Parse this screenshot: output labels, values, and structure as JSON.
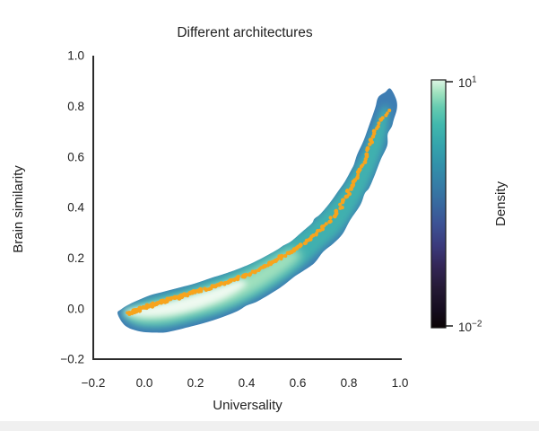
{
  "figure": {
    "title": "Different architectures"
  },
  "axes": {
    "x_label": "Universality",
    "y_label": "Brain similarity",
    "x_tick_labels": [
      "−0.2",
      "0.0",
      "0.2",
      "0.4",
      "0.6",
      "0.8",
      "1.0"
    ],
    "y_tick_labels": [
      "1.0",
      "0.8",
      "0.6",
      "0.4",
      "0.2",
      "0.0",
      "−0.2"
    ]
  },
  "colorbar": {
    "label": "Density",
    "scale": "log10",
    "top_tick": {
      "base": "10",
      "exp": "1"
    },
    "bottom_tick": {
      "base": "10",
      "exp": "−2"
    },
    "gradient": [
      [
        0.0,
        "#0b0405"
      ],
      [
        0.07,
        "#150c1e"
      ],
      [
        0.16,
        "#251a35"
      ],
      [
        0.25,
        "#332657"
      ],
      [
        0.33,
        "#3b3a7c"
      ],
      [
        0.42,
        "#3c5295"
      ],
      [
        0.5,
        "#38699f"
      ],
      [
        0.58,
        "#357ea6"
      ],
      [
        0.66,
        "#3292aa"
      ],
      [
        0.74,
        "#35a5ac"
      ],
      [
        0.82,
        "#41b8ad"
      ],
      [
        0.89,
        "#66cbb0"
      ],
      [
        0.95,
        "#a2e3c0"
      ],
      [
        1.0,
        "#def5e5"
      ]
    ]
  },
  "colors": {
    "blob_outer": "#3e7db3",
    "blob_teal": "#3fb0af",
    "blob_green": "#9fe0bd",
    "blob_core": "#eef9f0",
    "trend_orange": "#f7a41d",
    "spine": "#2b2b2b",
    "text": "#222222",
    "footer_strip": "#f0f0f0"
  },
  "chart_data": {
    "type": "density-kde-with-trend-scatter",
    "title": "Different architectures",
    "xlabel": "Universality",
    "ylabel": "Brain similarity",
    "xlim": [
      -0.2,
      1.0
    ],
    "ylim": [
      -0.2,
      1.0
    ],
    "x_ticks": [
      -0.2,
      0.0,
      0.2,
      0.4,
      0.6,
      0.8,
      1.0
    ],
    "y_ticks": [
      -0.2,
      0.0,
      0.2,
      0.4,
      0.6,
      0.8,
      1.0
    ],
    "grid": false,
    "colorbar": {
      "label": "Density",
      "scale": "log10",
      "min": 0.01,
      "max": 10,
      "position": "right"
    },
    "kde_contours": {
      "outer": [
        [
          -0.105,
          -0.02
        ],
        [
          -0.075,
          -0.068
        ],
        [
          -0.02,
          -0.09
        ],
        [
          0.045,
          -0.095
        ],
        [
          0.095,
          -0.092
        ],
        [
          0.185,
          -0.07
        ],
        [
          0.27,
          -0.046
        ],
        [
          0.36,
          -0.012
        ],
        [
          0.4,
          0.012
        ],
        [
          0.445,
          0.03
        ],
        [
          0.53,
          0.082
        ],
        [
          0.585,
          0.125
        ],
        [
          0.62,
          0.148
        ],
        [
          0.665,
          0.18
        ],
        [
          0.7,
          0.225
        ],
        [
          0.74,
          0.258
        ],
        [
          0.775,
          0.295
        ],
        [
          0.805,
          0.35
        ],
        [
          0.845,
          0.41
        ],
        [
          0.862,
          0.455
        ],
        [
          0.88,
          0.478
        ],
        [
          0.902,
          0.53
        ],
        [
          0.925,
          0.59
        ],
        [
          0.95,
          0.645
        ],
        [
          0.952,
          0.69
        ],
        [
          0.968,
          0.72
        ],
        [
          0.975,
          0.745
        ],
        [
          0.988,
          0.79
        ],
        [
          0.985,
          0.828
        ],
        [
          0.962,
          0.87
        ],
        [
          0.942,
          0.856
        ],
        [
          0.915,
          0.836
        ],
        [
          0.905,
          0.8
        ],
        [
          0.898,
          0.778
        ],
        [
          0.88,
          0.727
        ],
        [
          0.858,
          0.665
        ],
        [
          0.833,
          0.61
        ],
        [
          0.82,
          0.57
        ],
        [
          0.81,
          0.55
        ],
        [
          0.785,
          0.503
        ],
        [
          0.755,
          0.46
        ],
        [
          0.727,
          0.42
        ],
        [
          0.69,
          0.375
        ],
        [
          0.665,
          0.355
        ],
        [
          0.655,
          0.337
        ],
        [
          0.613,
          0.3
        ],
        [
          0.574,
          0.266
        ],
        [
          0.545,
          0.25
        ],
        [
          0.523,
          0.235
        ],
        [
          0.478,
          0.209
        ],
        [
          0.428,
          0.183
        ],
        [
          0.375,
          0.16
        ],
        [
          0.315,
          0.138
        ],
        [
          0.258,
          0.12
        ],
        [
          0.2,
          0.1
        ],
        [
          0.141,
          0.084
        ],
        [
          0.08,
          0.068
        ],
        [
          0.023,
          0.053
        ],
        [
          -0.02,
          0.035
        ],
        [
          -0.059,
          0.017
        ],
        [
          -0.09,
          -0.002
        ]
      ],
      "mid_teal": [
        [
          -0.088,
          -0.016
        ],
        [
          -0.058,
          -0.052
        ],
        [
          -0.01,
          -0.07
        ],
        [
          0.048,
          -0.074
        ],
        [
          0.095,
          -0.07
        ],
        [
          0.185,
          -0.05
        ],
        [
          0.27,
          -0.026
        ],
        [
          0.36,
          0.008
        ],
        [
          0.445,
          0.05
        ],
        [
          0.53,
          0.102
        ],
        [
          0.62,
          0.168
        ],
        [
          0.7,
          0.242
        ],
        [
          0.775,
          0.315
        ],
        [
          0.845,
          0.428
        ],
        [
          0.902,
          0.548
        ],
        [
          0.94,
          0.66
        ],
        [
          0.955,
          0.755
        ],
        [
          0.95,
          0.8
        ],
        [
          0.93,
          0.79
        ],
        [
          0.908,
          0.742
        ],
        [
          0.88,
          0.68
        ],
        [
          0.85,
          0.61
        ],
        [
          0.815,
          0.545
        ],
        [
          0.78,
          0.487
        ],
        [
          0.745,
          0.44
        ],
        [
          0.7,
          0.388
        ],
        [
          0.655,
          0.342
        ],
        [
          0.61,
          0.305
        ],
        [
          0.565,
          0.272
        ],
        [
          0.52,
          0.24
        ],
        [
          0.47,
          0.212
        ],
        [
          0.42,
          0.186
        ],
        [
          0.368,
          0.16
        ],
        [
          0.31,
          0.136
        ],
        [
          0.252,
          0.115
        ],
        [
          0.195,
          0.094
        ],
        [
          0.138,
          0.075
        ],
        [
          0.078,
          0.058
        ],
        [
          0.02,
          0.042
        ],
        [
          -0.025,
          0.024
        ],
        [
          -0.062,
          0.006
        ]
      ],
      "inner_green": [
        [
          -0.08,
          -0.012
        ],
        [
          -0.05,
          -0.04
        ],
        [
          0.0,
          -0.054
        ],
        [
          0.09,
          -0.05
        ],
        [
          0.18,
          -0.028
        ],
        [
          0.27,
          -0.004
        ],
        [
          0.36,
          0.03
        ],
        [
          0.44,
          0.072
        ],
        [
          0.52,
          0.124
        ],
        [
          0.578,
          0.168
        ],
        [
          0.612,
          0.205
        ],
        [
          0.596,
          0.232
        ],
        [
          0.552,
          0.225
        ],
        [
          0.5,
          0.196
        ],
        [
          0.43,
          0.155
        ],
        [
          0.355,
          0.118
        ],
        [
          0.268,
          0.084
        ],
        [
          0.178,
          0.055
        ],
        [
          0.088,
          0.03
        ],
        [
          0.0,
          0.01
        ],
        [
          -0.052,
          -0.002
        ]
      ],
      "core_mint": [
        [
          -0.078,
          -0.018
        ],
        [
          -0.03,
          -0.03
        ],
        [
          0.03,
          -0.033
        ],
        [
          0.1,
          -0.026
        ],
        [
          0.17,
          -0.012
        ],
        [
          0.24,
          0.01
        ],
        [
          0.31,
          0.038
        ],
        [
          0.37,
          0.072
        ],
        [
          0.4,
          0.1
        ],
        [
          0.375,
          0.112
        ],
        [
          0.33,
          0.1
        ],
        [
          0.27,
          0.08
        ],
        [
          0.2,
          0.058
        ],
        [
          0.13,
          0.038
        ],
        [
          0.06,
          0.02
        ],
        [
          -0.01,
          0.004
        ],
        [
          -0.055,
          -0.006
        ]
      ]
    },
    "trend_curve": [
      [
        -0.065,
        -0.02
      ],
      [
        0.03,
        0.015
      ],
      [
        0.15,
        0.052
      ],
      [
        0.27,
        0.088
      ],
      [
        0.39,
        0.13
      ],
      [
        0.5,
        0.182
      ],
      [
        0.62,
        0.255
      ],
      [
        0.715,
        0.337
      ],
      [
        0.785,
        0.432
      ],
      [
        0.833,
        0.528
      ],
      [
        0.88,
        0.634
      ],
      [
        0.915,
        0.727
      ],
      [
        0.955,
        0.787
      ]
    ],
    "render": {
      "dot_count": 205,
      "dot_radius_px": 2.1,
      "seed": 42
    }
  }
}
